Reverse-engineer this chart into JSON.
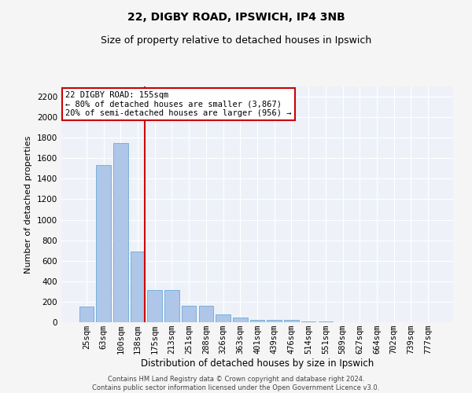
{
  "title1": "22, DIGBY ROAD, IPSWICH, IP4 3NB",
  "title2": "Size of property relative to detached houses in Ipswich",
  "xlabel": "Distribution of detached houses by size in Ipswich",
  "ylabel": "Number of detached properties",
  "footnote1": "Contains HM Land Registry data © Crown copyright and database right 2024.",
  "footnote2": "Contains public sector information licensed under the Open Government Licence v3.0.",
  "categories": [
    "25sqm",
    "63sqm",
    "100sqm",
    "138sqm",
    "175sqm",
    "213sqm",
    "251sqm",
    "288sqm",
    "326sqm",
    "363sqm",
    "401sqm",
    "439sqm",
    "476sqm",
    "514sqm",
    "551sqm",
    "589sqm",
    "627sqm",
    "664sqm",
    "702sqm",
    "739sqm",
    "777sqm"
  ],
  "values": [
    155,
    1530,
    1750,
    690,
    315,
    315,
    160,
    160,
    80,
    45,
    25,
    20,
    20,
    10,
    5,
    0,
    0,
    0,
    0,
    0,
    0
  ],
  "bar_color": "#aec6e8",
  "bar_edge_color": "#5a9fd4",
  "red_line_index": 3,
  "annotation_line1": "22 DIGBY ROAD: 155sqm",
  "annotation_line2": "← 80% of detached houses are smaller (3,867)",
  "annotation_line3": "20% of semi-detached houses are larger (956) →",
  "annotation_box_color": "#ffffff",
  "annotation_box_edge": "#cc0000",
  "red_line_color": "#cc0000",
  "ylim": [
    0,
    2300
  ],
  "yticks": [
    0,
    200,
    400,
    600,
    800,
    1000,
    1200,
    1400,
    1600,
    1800,
    2000,
    2200
  ],
  "background_color": "#eef2f8",
  "grid_color": "#ffffff",
  "fig_bg_color": "#f5f5f5",
  "title1_fontsize": 10,
  "title2_fontsize": 9,
  "xlabel_fontsize": 8.5,
  "ylabel_fontsize": 8,
  "tick_fontsize": 7.5,
  "footnote_fontsize": 6,
  "annot_fontsize": 7.5
}
